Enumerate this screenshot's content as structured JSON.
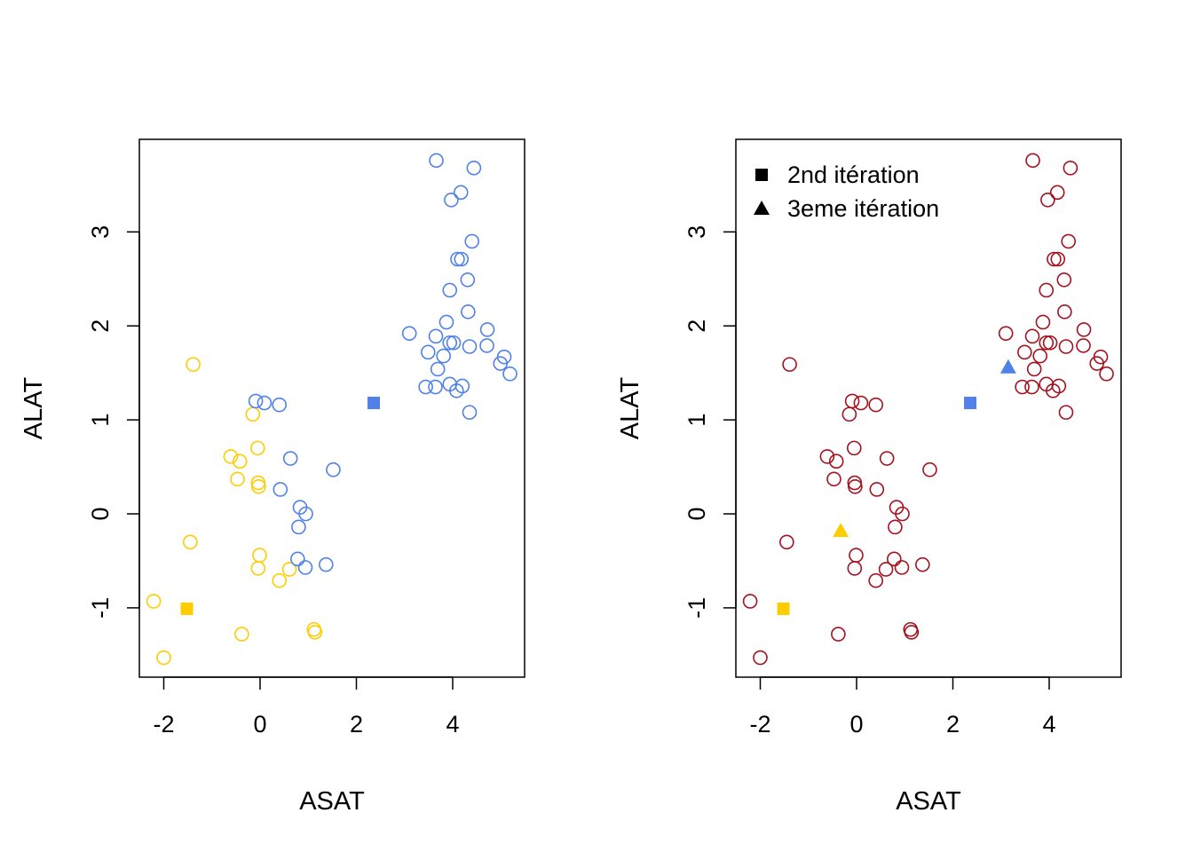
{
  "colors": {
    "yellow": "#FFCC00",
    "blue": "#4F81E8",
    "darkred": "#A5111E",
    "black": "#000000"
  },
  "chart_data": [
    {
      "type": "scatter",
      "xlabel": "ASAT",
      "ylabel": "ALAT",
      "xlim": [
        -2.5,
        5.5
      ],
      "ylim": [
        -1.75,
        3.95
      ],
      "xticks": [
        "-2",
        "0",
        "2",
        "4"
      ],
      "yticks": [
        "-1",
        "0",
        "1",
        "2",
        "3"
      ],
      "series": [
        {
          "color": "yellow",
          "marker": "open-circle",
          "points": [
            [
              -1.39,
              1.59
            ],
            [
              -0.15,
              1.06
            ],
            [
              -0.05,
              0.7
            ],
            [
              -0.61,
              0.61
            ],
            [
              -0.42,
              0.56
            ],
            [
              -0.47,
              0.37
            ],
            [
              -0.04,
              0.33
            ],
            [
              -0.03,
              0.29
            ],
            [
              -1.45,
              -0.3
            ],
            [
              -0.01,
              -0.44
            ],
            [
              0.61,
              -0.59
            ],
            [
              -0.04,
              -0.58
            ],
            [
              0.4,
              -0.71
            ],
            [
              -2.21,
              -0.93
            ],
            [
              -0.38,
              -1.28
            ],
            [
              1.12,
              -1.23
            ],
            [
              1.14,
              -1.26
            ],
            [
              -2.0,
              -1.53
            ]
          ]
        },
        {
          "color": "blue",
          "marker": "open-circle",
          "points": [
            [
              3.66,
              3.76
            ],
            [
              4.44,
              3.68
            ],
            [
              4.17,
              3.42
            ],
            [
              3.97,
              3.34
            ],
            [
              4.4,
              2.9
            ],
            [
              4.1,
              2.71
            ],
            [
              4.18,
              2.71
            ],
            [
              4.31,
              2.49
            ],
            [
              3.94,
              2.38
            ],
            [
              4.32,
              2.15
            ],
            [
              3.87,
              2.04
            ],
            [
              4.72,
              1.96
            ],
            [
              3.1,
              1.92
            ],
            [
              3.65,
              1.89
            ],
            [
              3.94,
              1.82
            ],
            [
              4.02,
              1.82
            ],
            [
              4.71,
              1.79
            ],
            [
              4.35,
              1.78
            ],
            [
              3.49,
              1.72
            ],
            [
              3.81,
              1.68
            ],
            [
              5.07,
              1.67
            ],
            [
              4.99,
              1.6
            ],
            [
              3.69,
              1.54
            ],
            [
              5.19,
              1.49
            ],
            [
              3.44,
              1.35
            ],
            [
              3.64,
              1.35
            ],
            [
              3.94,
              1.38
            ],
            [
              4.2,
              1.36
            ],
            [
              4.08,
              1.31
            ],
            [
              4.35,
              1.08
            ],
            [
              -0.09,
              1.2
            ],
            [
              0.09,
              1.18
            ],
            [
              0.4,
              1.16
            ],
            [
              0.63,
              0.59
            ],
            [
              1.52,
              0.47
            ],
            [
              0.42,
              0.26
            ],
            [
              0.83,
              0.07
            ],
            [
              0.95,
              0.0
            ],
            [
              0.8,
              -0.14
            ],
            [
              0.78,
              -0.48
            ],
            [
              0.94,
              -0.57
            ],
            [
              1.37,
              -0.54
            ]
          ]
        },
        {
          "color": "yellow",
          "marker": "filled-square",
          "points": [
            [
              -1.52,
              -1.01
            ]
          ]
        },
        {
          "color": "blue",
          "marker": "filled-square",
          "points": [
            [
              2.36,
              1.18
            ]
          ]
        }
      ]
    },
    {
      "type": "scatter",
      "xlabel": "ASAT",
      "ylabel": "ALAT",
      "xlim": [
        -2.5,
        5.5
      ],
      "ylim": [
        -1.75,
        3.95
      ],
      "xticks": [
        "-2",
        "0",
        "2",
        "4"
      ],
      "yticks": [
        "-1",
        "0",
        "1",
        "2",
        "3"
      ],
      "legend": {
        "position": "top-left",
        "items": [
          {
            "label": "2nd itération",
            "marker": "filled-square"
          },
          {
            "label": "3eme itération",
            "marker": "filled-triangle"
          }
        ]
      },
      "series": [
        {
          "color": "darkred",
          "marker": "open-circle",
          "points": [
            [
              -1.39,
              1.59
            ],
            [
              -0.15,
              1.06
            ],
            [
              -0.05,
              0.7
            ],
            [
              -0.61,
              0.61
            ],
            [
              -0.42,
              0.56
            ],
            [
              -0.47,
              0.37
            ],
            [
              -0.04,
              0.33
            ],
            [
              -0.03,
              0.29
            ],
            [
              -1.45,
              -0.3
            ],
            [
              -0.01,
              -0.44
            ],
            [
              0.61,
              -0.59
            ],
            [
              -0.04,
              -0.58
            ],
            [
              0.4,
              -0.71
            ],
            [
              -2.21,
              -0.93
            ],
            [
              -0.38,
              -1.28
            ],
            [
              1.12,
              -1.23
            ],
            [
              1.14,
              -1.26
            ],
            [
              -2.0,
              -1.53
            ],
            [
              3.66,
              3.76
            ],
            [
              4.44,
              3.68
            ],
            [
              4.17,
              3.42
            ],
            [
              3.97,
              3.34
            ],
            [
              4.4,
              2.9
            ],
            [
              4.1,
              2.71
            ],
            [
              4.18,
              2.71
            ],
            [
              4.31,
              2.49
            ],
            [
              3.94,
              2.38
            ],
            [
              4.32,
              2.15
            ],
            [
              3.87,
              2.04
            ],
            [
              4.72,
              1.96
            ],
            [
              3.1,
              1.92
            ],
            [
              3.65,
              1.89
            ],
            [
              3.94,
              1.82
            ],
            [
              4.02,
              1.82
            ],
            [
              4.71,
              1.79
            ],
            [
              4.35,
              1.78
            ],
            [
              3.49,
              1.72
            ],
            [
              3.81,
              1.68
            ],
            [
              5.07,
              1.67
            ],
            [
              4.99,
              1.6
            ],
            [
              3.69,
              1.54
            ],
            [
              5.19,
              1.49
            ],
            [
              3.44,
              1.35
            ],
            [
              3.64,
              1.35
            ],
            [
              3.94,
              1.38
            ],
            [
              4.2,
              1.36
            ],
            [
              4.08,
              1.31
            ],
            [
              4.35,
              1.08
            ],
            [
              -0.09,
              1.2
            ],
            [
              0.09,
              1.18
            ],
            [
              0.4,
              1.16
            ],
            [
              0.63,
              0.59
            ],
            [
              1.52,
              0.47
            ],
            [
              0.42,
              0.26
            ],
            [
              0.83,
              0.07
            ],
            [
              0.95,
              0.0
            ],
            [
              0.8,
              -0.14
            ],
            [
              0.78,
              -0.48
            ],
            [
              0.94,
              -0.57
            ],
            [
              1.37,
              -0.54
            ]
          ]
        },
        {
          "color": "yellow",
          "marker": "filled-square",
          "points": [
            [
              -1.52,
              -1.01
            ]
          ]
        },
        {
          "color": "blue",
          "marker": "filled-square",
          "points": [
            [
              2.36,
              1.18
            ]
          ]
        },
        {
          "color": "yellow",
          "marker": "filled-triangle",
          "points": [
            [
              -0.33,
              -0.18
            ]
          ]
        },
        {
          "color": "blue",
          "marker": "filled-triangle",
          "points": [
            [
              3.15,
              1.56
            ]
          ]
        }
      ]
    }
  ]
}
